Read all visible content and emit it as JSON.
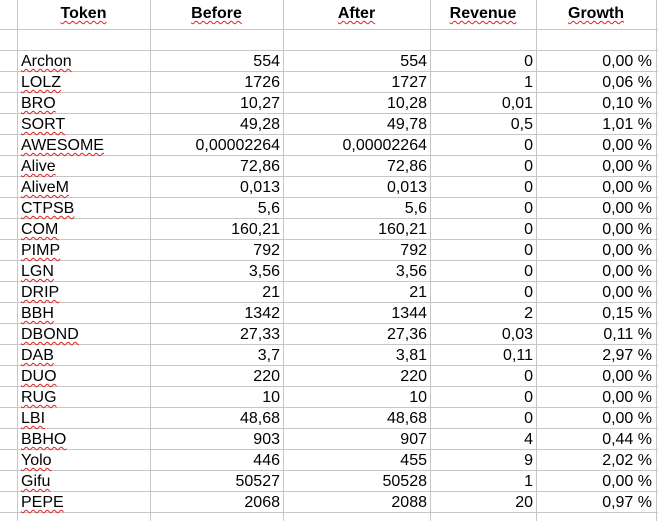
{
  "table": {
    "headers": {
      "token": "Token",
      "before": "Before",
      "after": "After",
      "revenue": "Revenue",
      "growth": "Growth"
    },
    "rows": [
      {
        "token": "Archon",
        "before": "554",
        "after": "554",
        "revenue": "0",
        "growth": "0,00 %"
      },
      {
        "token": "LOLZ",
        "before": "1726",
        "after": "1727",
        "revenue": "1",
        "growth": "0,06 %"
      },
      {
        "token": "BRO",
        "before": "10,27",
        "after": "10,28",
        "revenue": "0,01",
        "growth": "0,10 %"
      },
      {
        "token": "SORT",
        "before": "49,28",
        "after": "49,78",
        "revenue": "0,5",
        "growth": "1,01 %"
      },
      {
        "token": "AWESOME",
        "before": "0,00002264",
        "after": "0,00002264",
        "revenue": "0",
        "growth": "0,00 %"
      },
      {
        "token": "Alive",
        "before": "72,86",
        "after": "72,86",
        "revenue": "0",
        "growth": "0,00 %"
      },
      {
        "token": "AliveM",
        "before": "0,013",
        "after": "0,013",
        "revenue": "0",
        "growth": "0,00 %"
      },
      {
        "token": "CTPSB",
        "before": "5,6",
        "after": "5,6",
        "revenue": "0",
        "growth": "0,00 %"
      },
      {
        "token": "COM",
        "before": "160,21",
        "after": "160,21",
        "revenue": "0",
        "growth": "0,00 %"
      },
      {
        "token": "PIMP",
        "before": "792",
        "after": "792",
        "revenue": "0",
        "growth": "0,00 %"
      },
      {
        "token": "LGN",
        "before": "3,56",
        "after": "3,56",
        "revenue": "0",
        "growth": "0,00 %"
      },
      {
        "token": "DRIP",
        "before": "21",
        "after": "21",
        "revenue": "0",
        "growth": "0,00 %"
      },
      {
        "token": "BBH",
        "before": "1342",
        "after": "1344",
        "revenue": "2",
        "growth": "0,15 %"
      },
      {
        "token": "DBOND",
        "before": "27,33",
        "after": "27,36",
        "revenue": "0,03",
        "growth": "0,11 %"
      },
      {
        "token": "DAB",
        "before": "3,7",
        "after": "3,81",
        "revenue": "0,11",
        "growth": "2,97 %"
      },
      {
        "token": "DUO",
        "before": "220",
        "after": "220",
        "revenue": "0",
        "growth": "0,00 %"
      },
      {
        "token": "RUG",
        "before": "10",
        "after": "10",
        "revenue": "0",
        "growth": "0,00 %"
      },
      {
        "token": "LBI",
        "before": "48,68",
        "after": "48,68",
        "revenue": "0",
        "growth": "0,00 %"
      },
      {
        "token": "BBHO",
        "before": "903",
        "after": "907",
        "revenue": "4",
        "growth": "0,44 %"
      },
      {
        "token": "Yolo",
        "before": "446",
        "after": "455",
        "revenue": "9",
        "growth": "2,02 %"
      },
      {
        "token": "Gifu",
        "before": "50527",
        "after": "50528",
        "revenue": "1",
        "growth": "0,00 %"
      },
      {
        "token": "PEPE",
        "before": "2068",
        "after": "2088",
        "revenue": "20",
        "growth": "0,97 %"
      }
    ]
  },
  "colors": {
    "gridline": "#c6c6c6",
    "spellcheck_underline": "#e02020",
    "text": "#000000",
    "background": "#ffffff"
  }
}
